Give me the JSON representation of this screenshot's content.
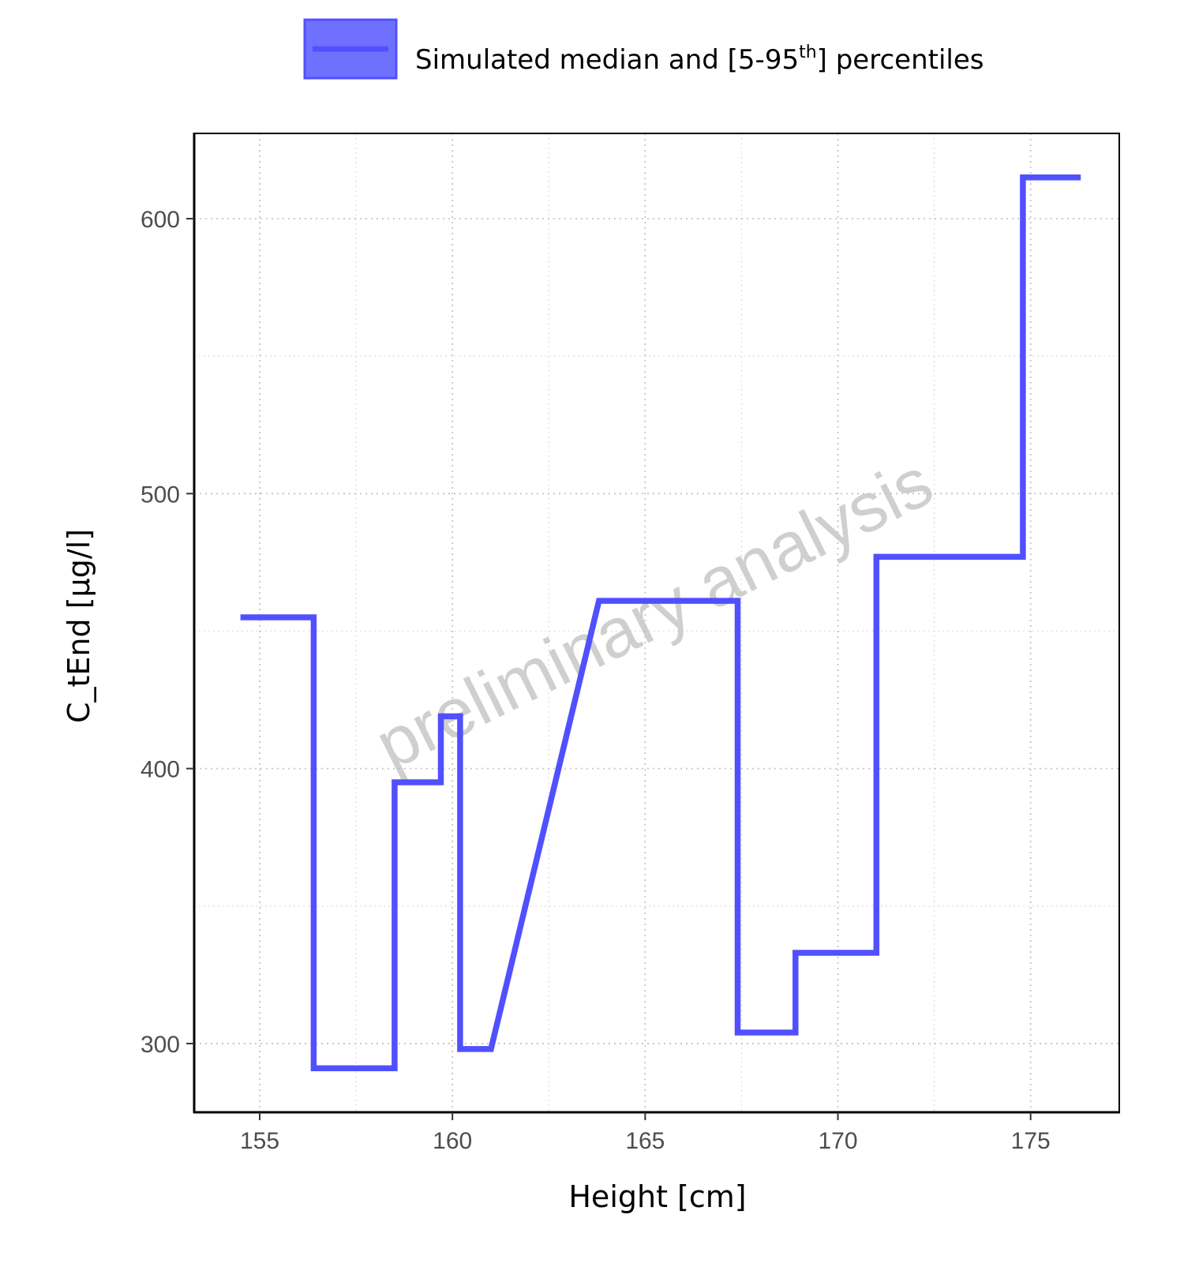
{
  "chart_data": {
    "type": "line",
    "xlabel": "Height [cm]",
    "ylabel": "C_tEnd [µg/l]",
    "xlim": [
      153.3,
      177.3
    ],
    "ylim": [
      275,
      631
    ],
    "x_ticks": [
      155,
      160,
      165,
      170,
      175
    ],
    "y_ticks": [
      300,
      400,
      500,
      600
    ],
    "grid": true,
    "legend_position": "top",
    "legend": {
      "label_main": "Simulated median and [5-95",
      "label_sup": "th",
      "label_end": "] percentiles"
    },
    "watermark": "preliminary analysis",
    "colors": {
      "line": "#5050ff",
      "ribbon": "#7070ff"
    },
    "series": [
      {
        "x": [
          154.5,
          156.4,
          156.4,
          158.5,
          158.5,
          159.7,
          159.7,
          160.2,
          160.2,
          161.0,
          163.8,
          167.4,
          167.4,
          168.9,
          168.9,
          171.0,
          171.0,
          174.8,
          174.8,
          176.3
        ],
        "y": [
          455,
          455,
          291,
          291,
          395,
          395,
          419,
          419,
          298,
          298,
          461,
          461,
          304,
          304,
          333,
          333,
          477,
          477,
          615,
          615
        ]
      }
    ]
  }
}
